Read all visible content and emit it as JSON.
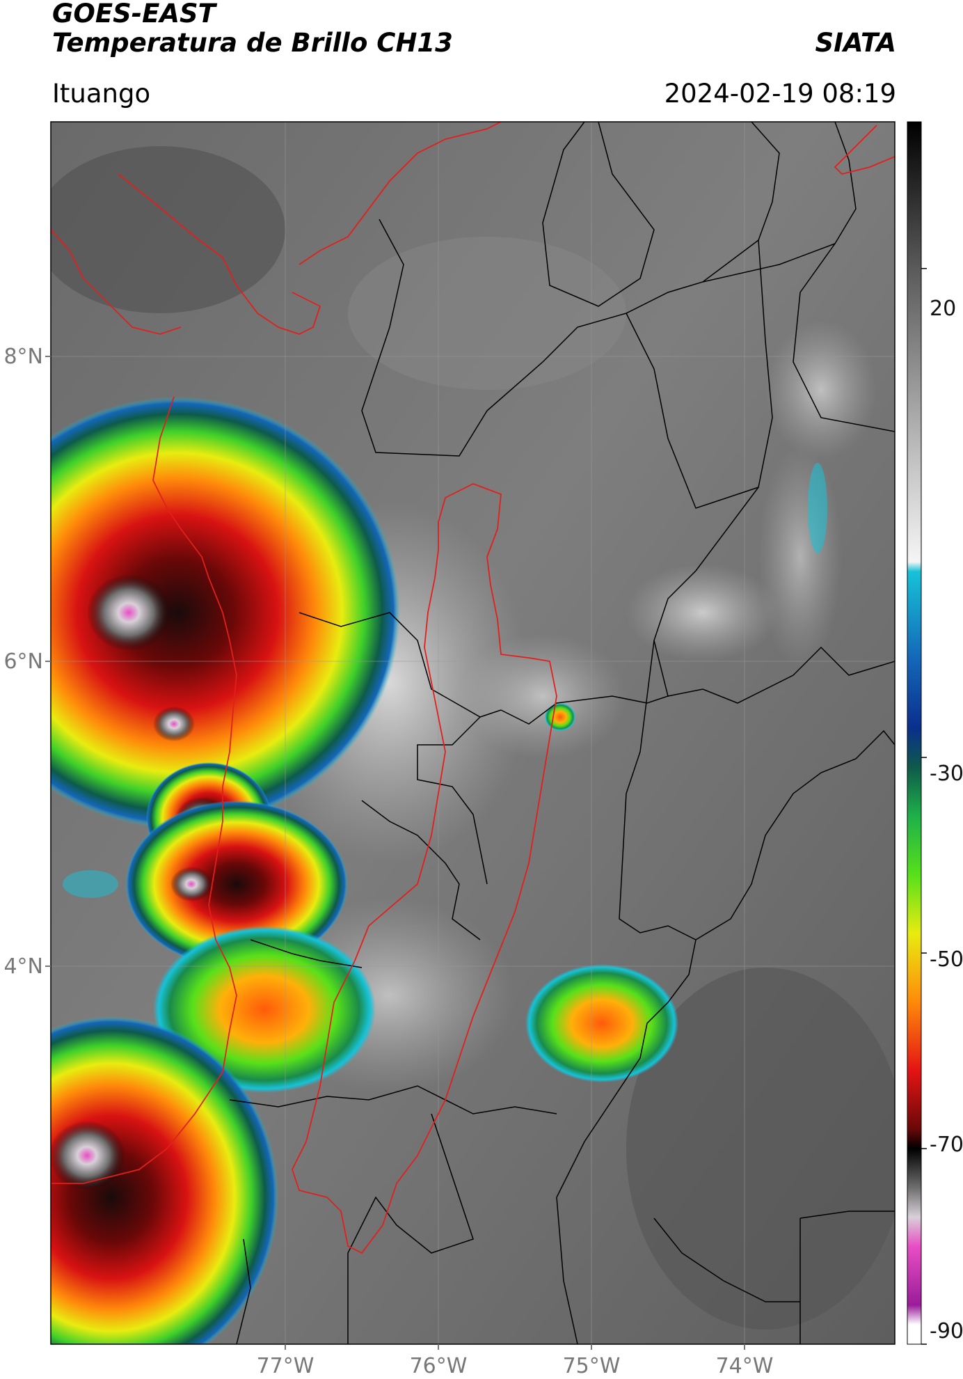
{
  "header": {
    "satellite": "GOES-EAST",
    "product": "Temperatura de Brillo CH13",
    "organization": "SIATA",
    "region": "Ituango",
    "timestamp": "2024-02-19 08:19"
  },
  "map": {
    "lat_ticks": [
      {
        "label": "8°N",
        "value": 8
      },
      {
        "label": "6°N",
        "value": 6
      },
      {
        "label": "4°N",
        "value": 4
      }
    ],
    "lon_ticks": [
      {
        "label": "77°W",
        "value": -77
      },
      {
        "label": "76°W",
        "value": -76
      },
      {
        "label": "75°W",
        "value": -75
      },
      {
        "label": "74°W",
        "value": -74
      }
    ],
    "extent": {
      "lon_min": -78.55,
      "lon_max": -73.0,
      "lat_min": 2.0,
      "lat_max": 9.55
    },
    "colors": {
      "country_border": "#e0201c",
      "department_border": "#000000",
      "highlight_basin": "#e0201c",
      "gridline": "#999999"
    }
  },
  "colorbar": {
    "units_range": [
      -90,
      35
    ],
    "ticks": [
      {
        "label": "20",
        "value": 20
      },
      {
        "label": "-30",
        "value": -30
      },
      {
        "label": "-50",
        "value": -50
      },
      {
        "label": "-70",
        "value": -70
      },
      {
        "label": "-90",
        "value": -90
      }
    ],
    "stops": [
      {
        "value": 35,
        "color": "#000000"
      },
      {
        "value": 28,
        "color": "#2a2a2a"
      },
      {
        "value": 20,
        "color": "#5a5a5a"
      },
      {
        "value": 10,
        "color": "#8e8e8e"
      },
      {
        "value": 0,
        "color": "#c4c4c4"
      },
      {
        "value": -10,
        "color": "#f5f5f5"
      },
      {
        "value": -11,
        "color": "#17c2d8"
      },
      {
        "value": -20,
        "color": "#1466b8"
      },
      {
        "value": -27,
        "color": "#0a2f8c"
      },
      {
        "value": -31,
        "color": "#0e5a4a"
      },
      {
        "value": -36,
        "color": "#1fb04a"
      },
      {
        "value": -42,
        "color": "#57e01a"
      },
      {
        "value": -48,
        "color": "#e8ec10"
      },
      {
        "value": -55,
        "color": "#ff8a0a"
      },
      {
        "value": -62,
        "color": "#e41414"
      },
      {
        "value": -68,
        "color": "#6a0808"
      },
      {
        "value": -70,
        "color": "#000000"
      },
      {
        "value": -74,
        "color": "#6e6e6e"
      },
      {
        "value": -77,
        "color": "#d8d0d8"
      },
      {
        "value": -80,
        "color": "#e84ec4"
      },
      {
        "value": -86,
        "color": "#9a1c9a"
      },
      {
        "value": -88,
        "color": "#ffffff"
      },
      {
        "value": -90,
        "color": "#ffffff"
      }
    ]
  }
}
